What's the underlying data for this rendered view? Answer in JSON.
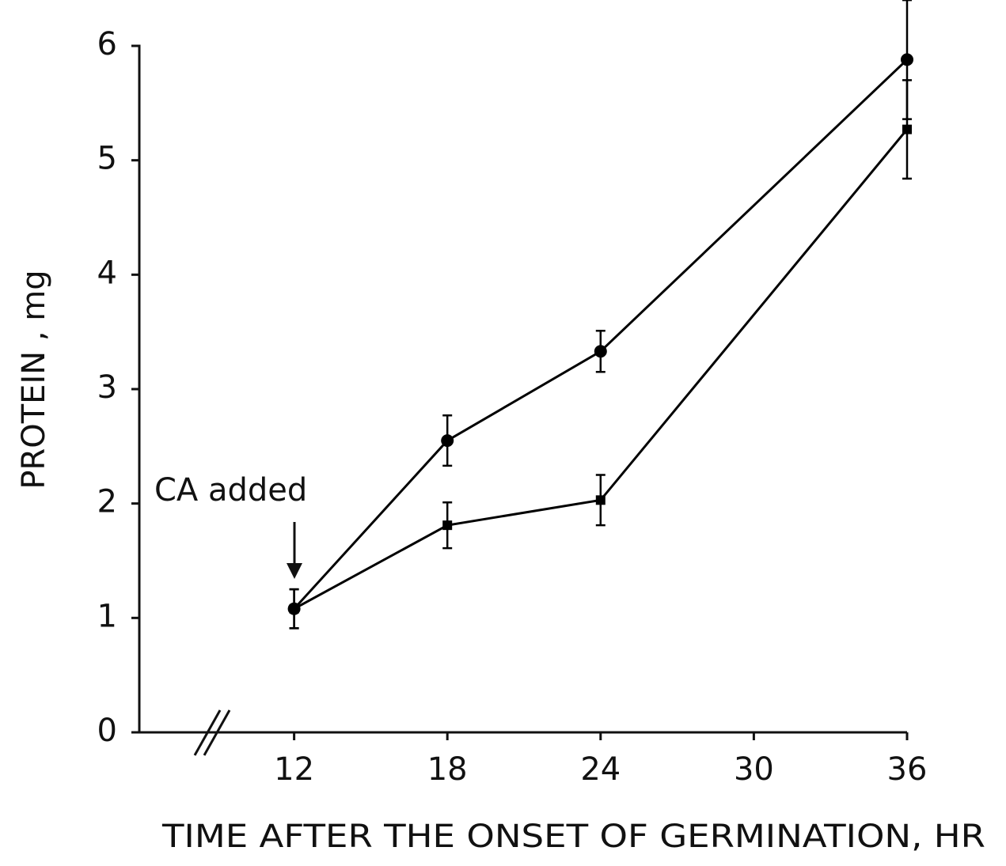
{
  "chart_data": {
    "type": "line",
    "x_label": "TIME AFTER THE ONSET OF GERMINATION, HR",
    "y_label": "PROTEIN , mg",
    "annotation": "CA added",
    "x": [
      12,
      18,
      24,
      36
    ],
    "series": [
      {
        "color": "#000000",
        "marker": "circle",
        "values": [
          1.08,
          2.55,
          3.33,
          5.88
        ],
        "errors": [
          0.17,
          0.22,
          0.18,
          0.52
        ]
      },
      {
        "color": "#000000",
        "marker": "square",
        "values": [
          1.08,
          1.81,
          2.03,
          5.27
        ],
        "errors": [
          0.17,
          0.2,
          0.22,
          0.43
        ]
      }
    ],
    "xlim": [
      6,
      36
    ],
    "xticks": [
      12,
      18,
      24,
      30,
      36
    ],
    "ylim": [
      0,
      6
    ],
    "yticks": [
      0,
      1,
      2,
      3,
      4,
      5,
      6
    ],
    "x_axis_break": true
  }
}
